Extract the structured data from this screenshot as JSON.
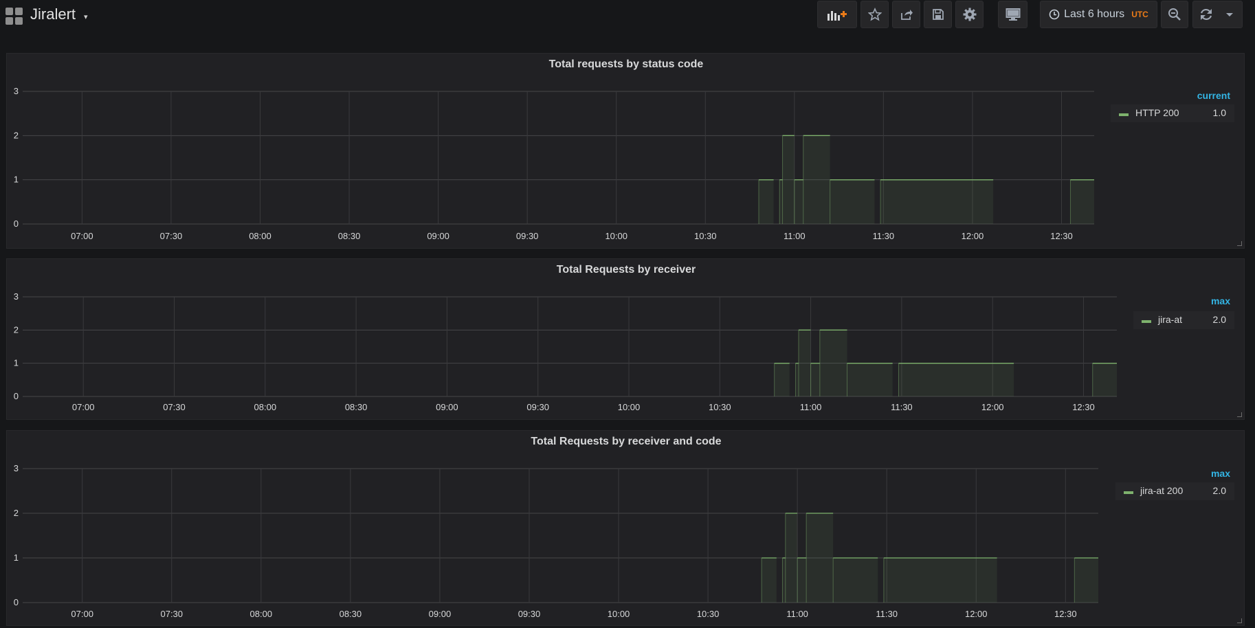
{
  "dashboard": {
    "title": "Jiralert",
    "title_caret": "▾"
  },
  "toolbar": {
    "buttons": [
      {
        "icon": "add-panel-icon",
        "label": ""
      },
      {
        "icon": "star-icon",
        "label": ""
      },
      {
        "icon": "share-icon",
        "label": ""
      },
      {
        "icon": "save-icon",
        "label": ""
      },
      {
        "icon": "gear-icon",
        "label": ""
      },
      {
        "icon": "tv-monitor-icon",
        "label": ""
      },
      {
        "icon": "zoom-out-icon",
        "label": ""
      },
      {
        "icon": "refresh-icon",
        "label": ""
      },
      {
        "icon": "caret-down-icon",
        "label": ""
      }
    ],
    "time_range": "Last 6 hours",
    "timezone": "UTC"
  },
  "colors": {
    "series": "#7eb26d",
    "legend_header": "#33b5e5",
    "utc": "#eb7b18",
    "accent_add": "#eb7b18"
  },
  "panels": [
    {
      "title": "Total requests by status code",
      "legend_header": "current",
      "legend": [
        {
          "name": "HTTP 200",
          "value": "1.0"
        }
      ]
    },
    {
      "title": "Total Requests by receiver",
      "legend_header": "max",
      "legend": [
        {
          "name": "jira-at",
          "value": "2.0"
        }
      ]
    },
    {
      "title": "Total Requests by receiver and code",
      "legend_header": "max",
      "legend": [
        {
          "name": "jira-at 200",
          "value": "2.0"
        }
      ]
    }
  ],
  "chart_data": [
    {
      "type": "area",
      "title": "Total requests by status code",
      "x_unit": "time (UTC)",
      "x_ticks": [
        "07:00",
        "07:30",
        "08:00",
        "08:30",
        "09:00",
        "09:30",
        "10:00",
        "10:30",
        "11:00",
        "11:30",
        "12:00",
        "12:30"
      ],
      "xlim": [
        "06:40",
        "12:41"
      ],
      "y_ticks": [
        0,
        1,
        2,
        3
      ],
      "ylim": [
        0,
        3
      ],
      "grid": true,
      "legend_position": "right",
      "series": [
        {
          "name": "HTTP 200",
          "color": "#7eb26d",
          "segments": [
            {
              "start": "10:48",
              "end": "10:53",
              "value": 1
            },
            {
              "start": "10:55",
              "end": "10:56",
              "value": 1
            },
            {
              "start": "10:56",
              "end": "11:00",
              "value": 2
            },
            {
              "start": "11:00",
              "end": "11:03",
              "value": 1
            },
            {
              "start": "11:03",
              "end": "11:12",
              "value": 2
            },
            {
              "start": "11:12",
              "end": "11:27",
              "value": 1
            },
            {
              "start": "11:29",
              "end": "12:07",
              "value": 1
            },
            {
              "start": "12:33",
              "end": "12:41",
              "value": 1
            }
          ]
        }
      ]
    },
    {
      "type": "area",
      "title": "Total Requests by receiver",
      "x_unit": "time (UTC)",
      "x_ticks": [
        "07:00",
        "07:30",
        "08:00",
        "08:30",
        "09:00",
        "09:30",
        "10:00",
        "10:30",
        "11:00",
        "11:30",
        "12:00",
        "12:30"
      ],
      "xlim": [
        "06:40",
        "12:41"
      ],
      "y_ticks": [
        0,
        1,
        2,
        3
      ],
      "ylim": [
        0,
        3
      ],
      "grid": true,
      "legend_position": "right",
      "series": [
        {
          "name": "jira-at",
          "color": "#7eb26d",
          "segments": [
            {
              "start": "10:48",
              "end": "10:53",
              "value": 1
            },
            {
              "start": "10:55",
              "end": "10:56",
              "value": 1
            },
            {
              "start": "10:56",
              "end": "11:00",
              "value": 2
            },
            {
              "start": "11:00",
              "end": "11:03",
              "value": 1
            },
            {
              "start": "11:03",
              "end": "11:12",
              "value": 2
            },
            {
              "start": "11:12",
              "end": "11:27",
              "value": 1
            },
            {
              "start": "11:29",
              "end": "12:07",
              "value": 1
            },
            {
              "start": "12:33",
              "end": "12:41",
              "value": 1
            }
          ]
        }
      ]
    },
    {
      "type": "area",
      "title": "Total Requests by receiver and code",
      "x_unit": "time (UTC)",
      "x_ticks": [
        "07:00",
        "07:30",
        "08:00",
        "08:30",
        "09:00",
        "09:30",
        "10:00",
        "10:30",
        "11:00",
        "11:30",
        "12:00",
        "12:30"
      ],
      "xlim": [
        "06:40",
        "12:41"
      ],
      "y_ticks": [
        0,
        1,
        2,
        3
      ],
      "ylim": [
        0,
        3
      ],
      "grid": true,
      "legend_position": "right",
      "series": [
        {
          "name": "jira-at 200",
          "color": "#7eb26d",
          "segments": [
            {
              "start": "10:48",
              "end": "10:53",
              "value": 1
            },
            {
              "start": "10:55",
              "end": "10:56",
              "value": 1
            },
            {
              "start": "10:56",
              "end": "11:00",
              "value": 2
            },
            {
              "start": "11:00",
              "end": "11:03",
              "value": 1
            },
            {
              "start": "11:03",
              "end": "11:12",
              "value": 2
            },
            {
              "start": "11:12",
              "end": "11:27",
              "value": 1
            },
            {
              "start": "11:29",
              "end": "12:07",
              "value": 1
            },
            {
              "start": "12:33",
              "end": "12:41",
              "value": 1
            }
          ]
        }
      ]
    }
  ]
}
